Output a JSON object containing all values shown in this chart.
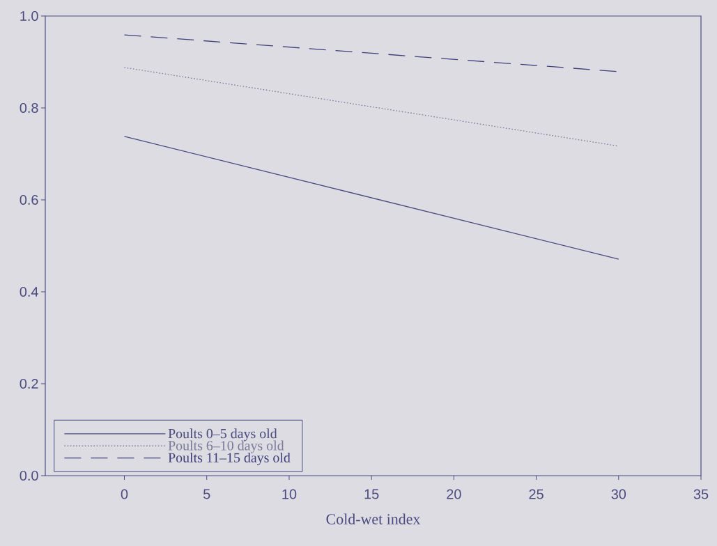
{
  "chart_data": {
    "type": "line",
    "xlabel": "Cold-wet index",
    "x": [
      0,
      30
    ],
    "series": [
      {
        "name": "Poults 0–5 days old",
        "color": "#4a4a80",
        "values": [
          0.738,
          0.471
        ],
        "line_style": "solid"
      },
      {
        "name": "Poults 6–10 days old",
        "color": "#7a7a9a",
        "values": [
          0.888,
          0.717
        ],
        "line_style": "dotted"
      },
      {
        "name": "Poults 11–15 days old",
        "color": "#3e3e7a",
        "values": [
          0.959,
          0.879
        ],
        "line_style": "dashed"
      }
    ],
    "xlim": [
      -4.8,
      35
    ],
    "xticks": [
      0,
      5,
      10,
      15,
      20,
      25,
      30,
      35
    ],
    "ylim": [
      0.0,
      1.0
    ],
    "yticks": [
      {
        "value": 0.0,
        "label": "0.0"
      },
      {
        "value": 0.2,
        "label": "0.2"
      },
      {
        "value": 0.4,
        "label": "0.4"
      },
      {
        "value": 0.6,
        "label": "0.6"
      },
      {
        "value": 0.8,
        "label": "0.8"
      },
      {
        "value": 1.0,
        "label": "1.0"
      }
    ],
    "legend": "bottom left",
    "grid": false,
    "marker": "none"
  }
}
